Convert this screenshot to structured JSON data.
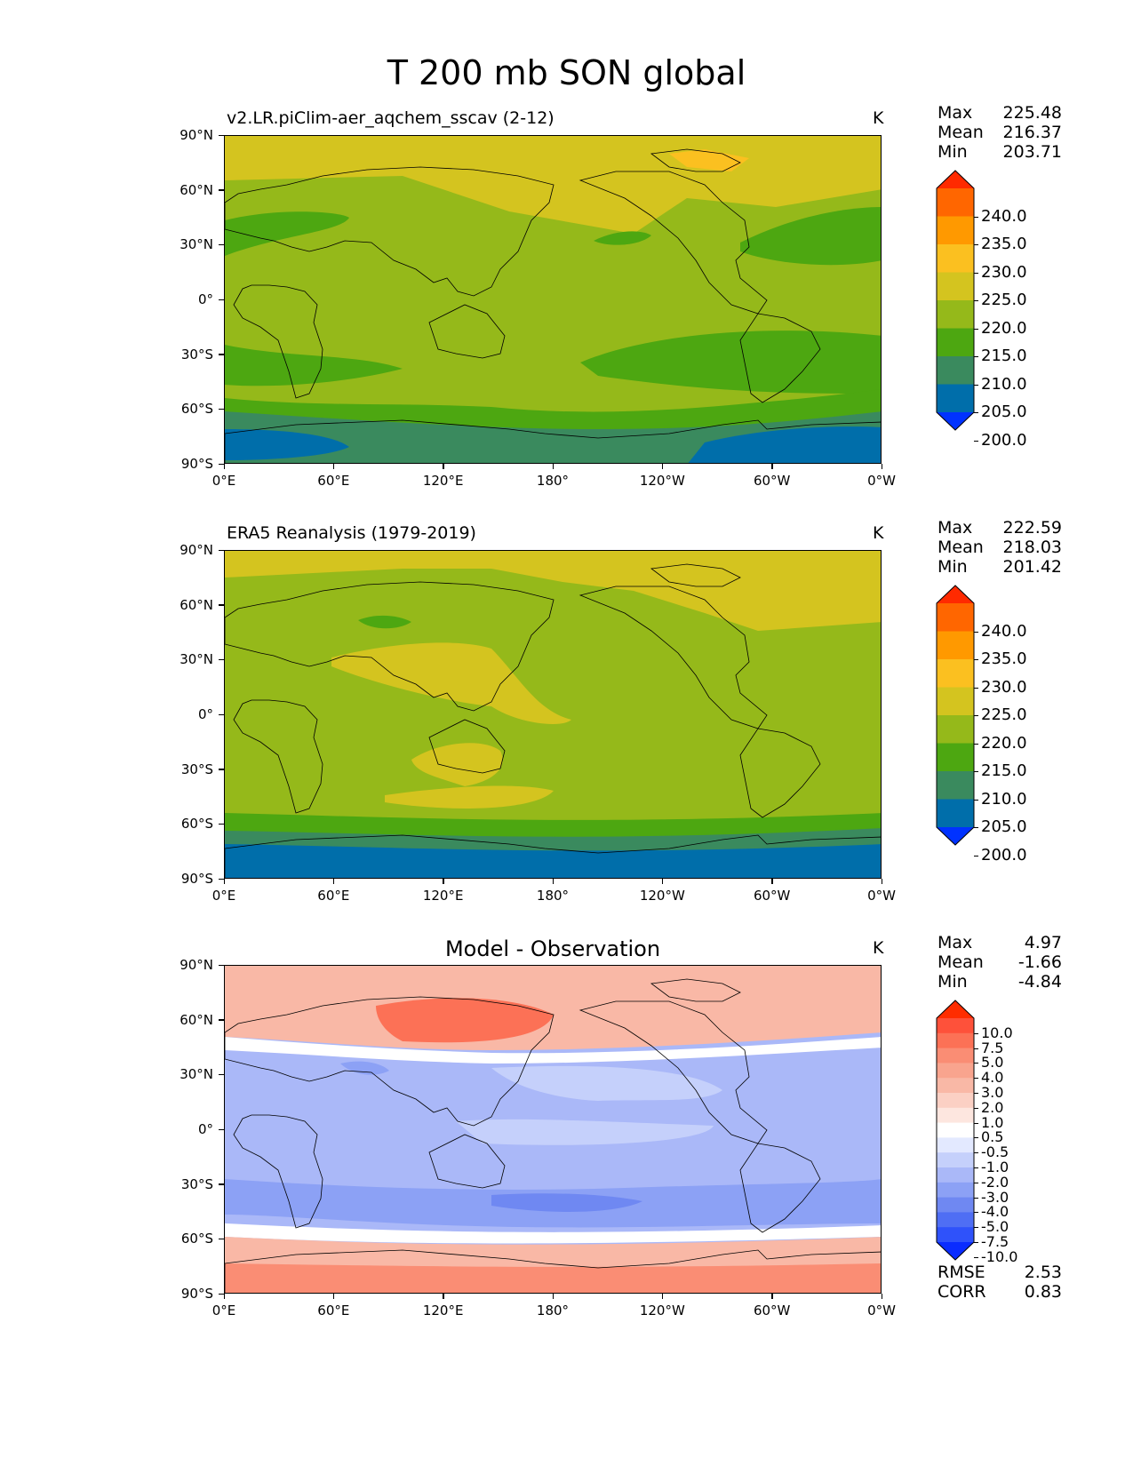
{
  "title": "T 200 mb SON global",
  "lat_labels": [
    "90°N",
    "60°N",
    "30°N",
    "0°",
    "30°S",
    "60°S",
    "90°S"
  ],
  "lon_labels": [
    "0°E",
    "60°E",
    "120°E",
    "180°",
    "120°W",
    "60°W",
    "0°W"
  ],
  "panels": [
    {
      "title": "v2.LR.piClim-aer_aqchem_sscav (2-12)",
      "units": "K",
      "stats": {
        "max_label": "Max",
        "max": "225.48",
        "mean_label": "Mean",
        "mean": "216.37",
        "min_label": "Min",
        "min": "203.71"
      },
      "colorbar": {
        "labels": [
          "240.0",
          "235.0",
          "230.0",
          "225.0",
          "220.0",
          "215.0",
          "210.0",
          "205.0",
          "200.0"
        ],
        "colors": [
          "#ff2a00",
          "#ff6600",
          "#ff9900",
          "#fbc020",
          "#d4c41f",
          "#95b91a",
          "#4da711",
          "#3a8a5e",
          "#006eaa",
          "#0032ff"
        ]
      }
    },
    {
      "title": "ERA5 Reanalysis (1979-2019)",
      "units": "K",
      "stats": {
        "max_label": "Max",
        "max": "222.59",
        "mean_label": "Mean",
        "mean": "218.03",
        "min_label": "Min",
        "min": "201.42"
      },
      "colorbar": {
        "labels": [
          "240.0",
          "235.0",
          "230.0",
          "225.0",
          "220.0",
          "215.0",
          "210.0",
          "205.0",
          "200.0"
        ],
        "colors": [
          "#ff2a00",
          "#ff6600",
          "#ff9900",
          "#fbc020",
          "#d4c41f",
          "#95b91a",
          "#4da711",
          "#3a8a5e",
          "#006eaa",
          "#0032ff"
        ]
      }
    },
    {
      "title": "Model - Observation",
      "units": "K",
      "stats": {
        "max_label": "Max",
        "max": "4.97",
        "mean_label": "Mean",
        "mean": "-1.66",
        "min_label": "Min",
        "min": "-4.84"
      },
      "colorbar": {
        "labels": [
          "10.0",
          "7.5",
          "5.0",
          "4.0",
          "3.0",
          "2.0",
          "1.0",
          "0.5",
          "-0.5",
          "-1.0",
          "-2.0",
          "-3.0",
          "-4.0",
          "-5.0",
          "-7.5",
          "-10.0"
        ],
        "colors": [
          "#ff2d00",
          "#fe513a",
          "#fc7156",
          "#fa8d74",
          "#f9a48e",
          "#f9b8a6",
          "#fbd0c4",
          "#fde6df",
          "#ffffff",
          "#e3e9ff",
          "#c5d0fb",
          "#aab8f8",
          "#8ca1f5",
          "#6f88f2",
          "#4f6ef4",
          "#2f52fa",
          "#0a2cff"
        ]
      },
      "extra_stats": {
        "rmse_label": "RMSE",
        "rmse": "2.53",
        "corr_label": "CORR",
        "corr": "0.83"
      }
    }
  ]
}
